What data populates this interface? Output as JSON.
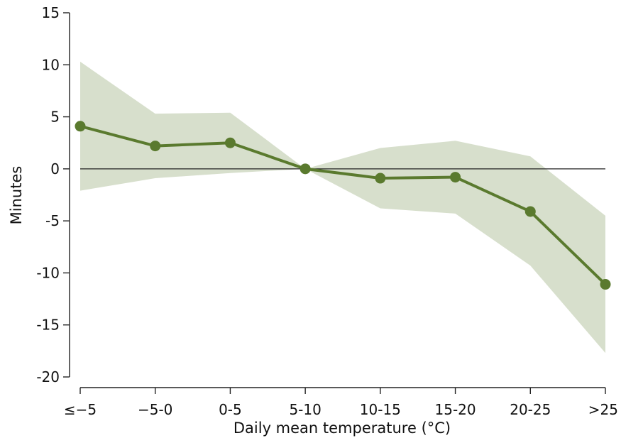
{
  "chart_data": {
    "type": "line",
    "categories": [
      "≤−5",
      "−5-0",
      "0-5",
      "5-10",
      "10-15",
      "15-20",
      "20-25",
      ">25"
    ],
    "series": [
      {
        "values": [
          4.1,
          2.2,
          2.5,
          0.0,
          -0.9,
          -0.8,
          -4.1,
          -11.1
        ],
        "ci_upper": [
          10.3,
          5.3,
          5.4,
          0.0,
          2.0,
          2.7,
          1.2,
          -4.5
        ],
        "ci_lower": [
          -2.1,
          -0.9,
          -0.4,
          0.0,
          -3.8,
          -4.3,
          -9.3,
          -17.7
        ]
      }
    ],
    "xlabel": "Daily mean temperature (°C)",
    "ylabel": "Minutes",
    "ylim": [
      -20,
      15
    ],
    "yticks": [
      15,
      10,
      5,
      0,
      -5,
      -10,
      -15,
      -20
    ],
    "reference_line": 0,
    "grid": false,
    "colors": {
      "line": "#5a7a2e",
      "marker": "#5a7a2e",
      "band": "#d7dfcc",
      "axis": "#222222"
    }
  }
}
